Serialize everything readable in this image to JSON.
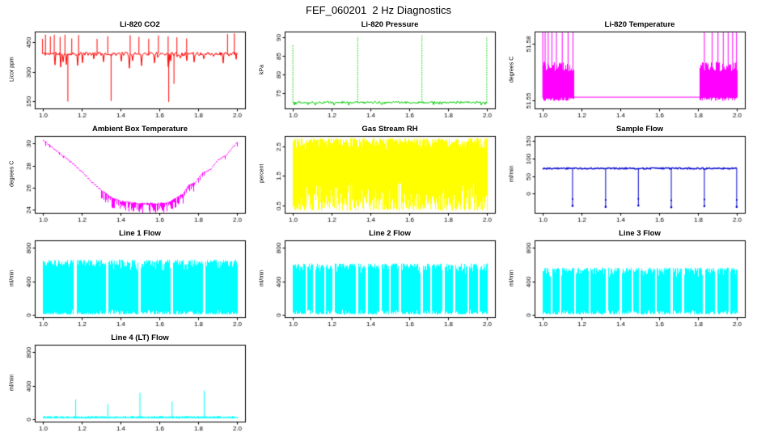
{
  "page_title": "FEF_060201  2 Hz Diagnostics",
  "chart_data": {
    "type": "line",
    "x_axis": {
      "lim": [
        0.96,
        2.04
      ],
      "data_range": [
        1.0,
        2.0
      ],
      "tick_values": [
        1.0,
        1.2,
        1.4,
        1.6,
        1.8,
        2.0
      ],
      "tick_labels": [
        "1.0",
        "1.2",
        "1.4",
        "1.6",
        "1.8",
        "2.0"
      ],
      "xlabel": ""
    },
    "charts": [
      {
        "id": "li820-co2",
        "title": "Li-820 CO2",
        "ylabel": "Licor ppm",
        "color": "#FF0000",
        "kind": "noisy_spikes",
        "seed": 11,
        "ylim": [
          115,
          505
        ],
        "tick_values": [
          150,
          300,
          450
        ],
        "tick_labels": [
          "150",
          "300",
          "450"
        ],
        "baseline": 392,
        "noise": 9,
        "hair_rate": 0.1,
        "hair_depth": 70,
        "up_spikes": [
          [
            1.0,
            468
          ],
          [
            1.015,
            489
          ],
          [
            1.04,
            480
          ],
          [
            1.06,
            489
          ],
          [
            1.09,
            478
          ],
          [
            1.115,
            489
          ],
          [
            1.15,
            470
          ],
          [
            1.185,
            487
          ],
          [
            1.28,
            468
          ],
          [
            1.335,
            481
          ],
          [
            1.45,
            486
          ],
          [
            1.495,
            478
          ],
          [
            1.545,
            468
          ],
          [
            1.595,
            485
          ],
          [
            1.645,
            480
          ],
          [
            1.69,
            476
          ],
          [
            1.74,
            470
          ],
          [
            1.95,
            492
          ],
          [
            1.985,
            496
          ]
        ],
        "down_spikes": [
          [
            1.13,
            150
          ],
          [
            1.352,
            153
          ],
          [
            1.648,
            148
          ],
          [
            1.675,
            240
          ]
        ]
      },
      {
        "id": "li820-pressure",
        "title": "Li-820 Pressure",
        "ylabel": "kPa",
        "color": "#00CC00",
        "kind": "noisy_spikes",
        "seed": 12,
        "spike_dash": true,
        "ylim": [
          71,
          91.5
        ],
        "tick_values": [
          75,
          80,
          85,
          90
        ],
        "tick_labels": [
          "75",
          "80",
          "85",
          "90"
        ],
        "baseline": 72.6,
        "noise": 0.3,
        "hair_rate": 0.05,
        "hair_depth": 0.7,
        "up_spikes": [
          [
            1.002,
            88
          ],
          [
            1.335,
            90.2
          ],
          [
            1.665,
            90.6
          ],
          [
            1.998,
            90.2
          ]
        ],
        "down_spikes": []
      },
      {
        "id": "li820-temperature",
        "title": "Li-820 Temperature",
        "ylabel": "degrees C",
        "color": "#FF00FF",
        "kind": "temp_blocks",
        "seed": 13,
        "ylim": [
          51.5455,
          51.5865
        ],
        "tick_values": [
          51.55,
          51.58
        ],
        "tick_labels": [
          "51.55",
          "51.58"
        ],
        "base": 51.5515,
        "block_lo": 51.5495,
        "block_hi": 51.5705,
        "blocks": [
          [
            1.0,
            1.163
          ],
          [
            1.807,
            2.0
          ]
        ],
        "spikes": [
          [
            1.0,
            51.586
          ],
          [
            1.012,
            51.586
          ],
          [
            1.028,
            51.586
          ],
          [
            1.047,
            51.586
          ],
          [
            1.07,
            51.586
          ],
          [
            1.1,
            51.586
          ],
          [
            1.13,
            51.586
          ],
          [
            1.155,
            51.586
          ],
          [
            1.83,
            51.586
          ],
          [
            1.87,
            51.586
          ],
          [
            1.9,
            51.586
          ],
          [
            1.927,
            51.586
          ],
          [
            1.952,
            51.586
          ],
          [
            1.975,
            51.586
          ],
          [
            1.995,
            51.586
          ]
        ]
      },
      {
        "id": "ambient-box-temperature",
        "title": "Ambient Box Temperature",
        "ylabel": "degrees C",
        "color": "#FF00FF",
        "kind": "u_curve",
        "seed": 14,
        "ylim": [
          23.7,
          30.7
        ],
        "tick_values": [
          24,
          26,
          28,
          30
        ],
        "tick_labels": [
          "24",
          "26",
          "28",
          "30"
        ],
        "curve": [
          [
            1.0,
            30.3
          ],
          [
            1.05,
            29.6
          ],
          [
            1.1,
            28.9
          ],
          [
            1.15,
            28.2
          ],
          [
            1.2,
            27.4
          ],
          [
            1.25,
            26.5
          ],
          [
            1.3,
            25.7
          ],
          [
            1.35,
            25.1
          ],
          [
            1.4,
            24.7
          ],
          [
            1.45,
            24.6
          ],
          [
            1.5,
            24.5
          ],
          [
            1.55,
            24.5
          ],
          [
            1.6,
            24.5
          ],
          [
            1.65,
            24.6
          ],
          [
            1.7,
            25.2
          ],
          [
            1.72,
            25.4
          ],
          [
            1.75,
            26.2
          ],
          [
            1.78,
            26.4
          ],
          [
            1.82,
            27.3
          ],
          [
            1.86,
            27.6
          ],
          [
            1.9,
            28.5
          ],
          [
            1.94,
            28.9
          ],
          [
            2.0,
            30.1
          ]
        ],
        "hair_region": [
          1.3,
          1.78
        ],
        "hair_rate_in": 0.8,
        "hair_rate_out": 0.12,
        "hair_depth": 0.9
      },
      {
        "id": "gas-stream-rh",
        "title": "Gas Stream RH",
        "ylabel": "percent",
        "color": "#FFFF00",
        "kind": "band",
        "seed": 15,
        "ylim": [
          0.25,
          2.85
        ],
        "tick_values": [
          0.5,
          1.5,
          2.5
        ],
        "tick_labels": [
          "0.5",
          "1.5",
          "2.5"
        ],
        "lo": 0.32,
        "lo_jitter": 1.1,
        "hi": 2.78,
        "hi_jitter": 0.4,
        "gaps": [],
        "gap_w": 0
      },
      {
        "id": "sample-flow",
        "title": "Sample Flow",
        "ylabel": "ml/min",
        "color": "#0000CD",
        "kind": "flat_downspikes",
        "seed": 16,
        "ylim": [
          -55,
          165
        ],
        "tick_values": [
          0,
          50,
          100,
          150
        ],
        "tick_labels": [
          "0",
          "50",
          "100",
          "150"
        ],
        "baseline": 72,
        "noise": 2,
        "spikes": [
          [
            1.155,
            -35
          ],
          [
            1.325,
            -38
          ],
          [
            1.493,
            -34
          ],
          [
            1.662,
            -39
          ],
          [
            1.832,
            -36
          ],
          [
            1.998,
            -38
          ]
        ]
      },
      {
        "id": "line1-flow",
        "title": "Line 1 Flow",
        "ylabel": "ml/min",
        "color": "#00FFFF",
        "kind": "band",
        "seed": 17,
        "ylim": [
          -25,
          890
        ],
        "tick_values": [
          0,
          400,
          800
        ],
        "tick_labels": [
          "0",
          "400",
          "800"
        ],
        "lo": 8,
        "lo_jitter": 60,
        "hi": 660,
        "hi_jitter": 140,
        "gaps": [
          1.165,
          1.33,
          1.497,
          1.662,
          1.828
        ],
        "gap_w": 0.007
      },
      {
        "id": "line2-flow",
        "title": "Line 2 Flow",
        "ylabel": "ml/min",
        "color": "#00FFFF",
        "kind": "band",
        "seed": 18,
        "ylim": [
          -25,
          890
        ],
        "tick_values": [
          0,
          400,
          800
        ],
        "tick_labels": [
          "0",
          "400",
          "800"
        ],
        "lo": 8,
        "lo_jitter": 60,
        "hi": 615,
        "hi_jitter": 130,
        "gaps": [
          1.07,
          1.11,
          1.165,
          1.21,
          1.33,
          1.38,
          1.45,
          1.497,
          1.55,
          1.662,
          1.71,
          1.775,
          1.828,
          1.9,
          1.955
        ],
        "gap_w": 0.005
      },
      {
        "id": "line3-flow",
        "title": "Line 3 Flow",
        "ylabel": "ml/min",
        "color": "#00FFFF",
        "kind": "band",
        "seed": 19,
        "ylim": [
          -25,
          890
        ],
        "tick_values": [
          0,
          400,
          800
        ],
        "tick_labels": [
          "0",
          "400",
          "800"
        ],
        "lo": 8,
        "lo_jitter": 60,
        "hi": 565,
        "hi_jitter": 120,
        "gaps": [
          1.045,
          1.09,
          1.165,
          1.24,
          1.33,
          1.4,
          1.46,
          1.497,
          1.58,
          1.662,
          1.72,
          1.828,
          1.89,
          1.96
        ],
        "gap_w": 0.005
      },
      {
        "id": "line4-lt-flow",
        "title": "Line 4 (LT) Flow",
        "ylabel": "ml/min",
        "color": "#00FFFF",
        "kind": "flat_upspikes",
        "seed": 20,
        "ylim": [
          -25,
          890
        ],
        "tick_values": [
          0,
          400,
          800
        ],
        "tick_labels": [
          "0",
          "400",
          "800"
        ],
        "lo": 12,
        "hi": 42,
        "spikes": [
          [
            1.17,
            240
          ],
          [
            1.335,
            185
          ],
          [
            1.5,
            320
          ],
          [
            1.665,
            215
          ],
          [
            1.83,
            345
          ]
        ]
      }
    ]
  }
}
